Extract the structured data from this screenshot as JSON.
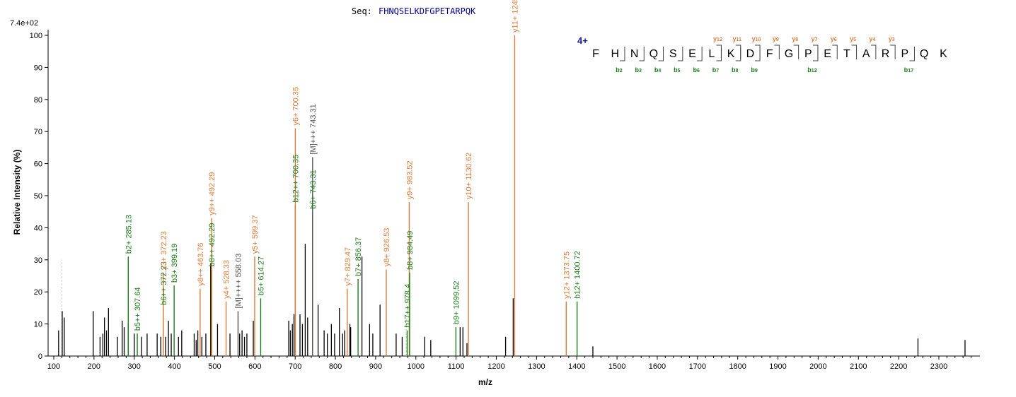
{
  "header": {
    "seq_label": "Seq:",
    "sequence": "FHNQSELKDFGPETARPQK",
    "scale_max": "7.4e+02",
    "charge": "4+"
  },
  "colors": {
    "y_ion": "#e07b39",
    "b_ion": "#1a7f1a",
    "precursor": "#555555",
    "unassigned": "#000000",
    "sequence": "#00008b",
    "charge": "#1a1aa0"
  },
  "chart_data": {
    "type": "bar",
    "title": "",
    "xlabel": "m/z",
    "ylabel": "Relative  Intensity (%)",
    "xlim": [
      100,
      2390
    ],
    "ylim": [
      0,
      100
    ],
    "x_ticks": [
      100,
      200,
      300,
      400,
      500,
      600,
      700,
      800,
      900,
      1000,
      1100,
      1200,
      1300,
      1400,
      1500,
      1600,
      1700,
      1800,
      1900,
      2000,
      2100,
      2200,
      2300
    ],
    "y_ticks": [
      0,
      10,
      20,
      30,
      40,
      50,
      60,
      70,
      80,
      90,
      100
    ],
    "unassigned_peaks": [
      [
        112,
        8
      ],
      [
        121,
        14
      ],
      [
        126,
        12
      ],
      [
        198,
        14
      ],
      [
        215,
        6
      ],
      [
        222,
        7
      ],
      [
        226,
        12
      ],
      [
        231,
        8
      ],
      [
        236,
        15
      ],
      [
        258,
        6
      ],
      [
        270,
        11
      ],
      [
        275,
        9
      ],
      [
        285,
        10
      ],
      [
        300,
        7
      ],
      [
        318,
        6
      ],
      [
        332,
        7
      ],
      [
        357,
        7
      ],
      [
        366,
        6
      ],
      [
        378,
        6
      ],
      [
        385,
        11
      ],
      [
        392,
        7
      ],
      [
        410,
        6
      ],
      [
        418,
        8
      ],
      [
        449,
        7
      ],
      [
        454,
        5
      ],
      [
        458,
        8
      ],
      [
        468,
        6
      ],
      [
        478,
        7
      ],
      [
        490,
        29
      ],
      [
        507,
        10
      ],
      [
        538,
        7
      ],
      [
        562,
        7
      ],
      [
        568,
        8
      ],
      [
        574,
        6
      ],
      [
        580,
        7
      ],
      [
        596,
        11
      ],
      [
        684,
        11
      ],
      [
        688,
        8
      ],
      [
        693,
        10
      ],
      [
        697,
        13
      ],
      [
        712,
        13
      ],
      [
        718,
        10
      ],
      [
        725,
        35
      ],
      [
        731,
        12
      ],
      [
        757,
        16
      ],
      [
        772,
        8
      ],
      [
        780,
        7
      ],
      [
        790,
        10
      ],
      [
        798,
        7
      ],
      [
        810,
        15
      ],
      [
        818,
        7
      ],
      [
        823,
        8
      ],
      [
        836,
        10
      ],
      [
        838,
        9
      ],
      [
        866,
        31
      ],
      [
        885,
        10
      ],
      [
        893,
        7
      ],
      [
        911,
        16
      ],
      [
        951,
        7
      ],
      [
        966,
        6
      ],
      [
        1022,
        6
      ],
      [
        1037,
        5
      ],
      [
        1110,
        9
      ],
      [
        1117,
        9
      ],
      [
        1127,
        4
      ],
      [
        1223,
        6
      ],
      [
        1242,
        18
      ],
      [
        1440,
        3
      ],
      [
        2248,
        5.5
      ],
      [
        2365,
        5
      ]
    ],
    "ion_peaks": [
      {
        "x": 285.13,
        "y": 31,
        "label": "b2+ 285.13",
        "ion": "b"
      },
      {
        "x": 307.64,
        "y": 7,
        "label": "b5++ 307.64",
        "ion": "b"
      },
      {
        "x": 372.23,
        "y": 15,
        "label": "b6++ 372.23",
        "ion": "b"
      },
      {
        "x": 372.23,
        "y": 26,
        "label": "y3+ 372.23",
        "ion": "y"
      },
      {
        "x": 399.19,
        "y": 22,
        "label": "b3+ 399.19",
        "ion": "b"
      },
      {
        "x": 463.76,
        "y": 21,
        "label": "y8++ 463.76",
        "ion": "y"
      },
      {
        "x": 492.29,
        "y": 27,
        "label": "b8++ 492.29",
        "ion": "b"
      },
      {
        "x": 492.29,
        "y": 43,
        "label": "y9++ 492.29",
        "ion": "y"
      },
      {
        "x": 528.33,
        "y": 17,
        "label": "y4+ 528.33",
        "ion": "y"
      },
      {
        "x": 558.03,
        "y": 14,
        "label": "[M]++++ 558.03",
        "ion": "p"
      },
      {
        "x": 599.37,
        "y": 31,
        "label": "y5+ 599.37",
        "ion": "y"
      },
      {
        "x": 614.27,
        "y": 18,
        "label": "b5+ 614.27",
        "ion": "b"
      },
      {
        "x": 700.35,
        "y": 47,
        "label": "b12++ 700.35",
        "ion": "b"
      },
      {
        "x": 700.35,
        "y": 71,
        "label": "y6+ 700.35",
        "ion": "y"
      },
      {
        "x": 743.31,
        "y": 45,
        "label": "b6+ 743.31",
        "ion": "b"
      },
      {
        "x": 743.31,
        "y": 62,
        "label": "[M]+++ 743.31",
        "ion": "p"
      },
      {
        "x": 829.47,
        "y": 21,
        "label": "y7+ 829.47",
        "ion": "y"
      },
      {
        "x": 856.37,
        "y": 24,
        "label": "b7+ 856.37",
        "ion": "b"
      },
      {
        "x": 926.53,
        "y": 27,
        "label": "y8+ 926.53",
        "ion": "y"
      },
      {
        "x": 978.4,
        "y": 8,
        "label": "b17++ 978.4",
        "ion": "b"
      },
      {
        "x": 983.52,
        "y": 48,
        "label": "y9+ 983.52",
        "ion": "y"
      },
      {
        "x": 984.49,
        "y": 26,
        "label": "b8+ 984.49",
        "ion": "b"
      },
      {
        "x": 1099.52,
        "y": 9,
        "label": "b9+ 1099.52",
        "ion": "b"
      },
      {
        "x": 1130.62,
        "y": 48,
        "label": "y10+ 1130.62",
        "ion": "y"
      },
      {
        "x": 1245.64,
        "y": 100,
        "label": "y11+ 1245.64",
        "ion": "y"
      },
      {
        "x": 1373.75,
        "y": 17,
        "label": "y12+ 1373.75",
        "ion": "y"
      },
      {
        "x": 1400.72,
        "y": 17,
        "label": "b12+ 1400.72",
        "ion": "b"
      }
    ],
    "guide_peaks": [
      {
        "x": 120,
        "y": 30
      },
      {
        "x": 976,
        "y": 13
      }
    ]
  },
  "fragment_map": {
    "residues": [
      "F",
      "H",
      "N",
      "Q",
      "S",
      "E",
      "L",
      "K",
      "D",
      "F",
      "G",
      "P",
      "E",
      "T",
      "A",
      "R",
      "P",
      "Q",
      "K"
    ],
    "y_labels": [
      {
        "after": 7,
        "ion": "y",
        "idx": "12"
      },
      {
        "after": 8,
        "ion": "y",
        "idx": "11"
      },
      {
        "after": 9,
        "ion": "y",
        "idx": "10"
      },
      {
        "after": 10,
        "ion": "y",
        "idx": "9"
      },
      {
        "after": 11,
        "ion": "y",
        "idx": "8"
      },
      {
        "after": 12,
        "ion": "y",
        "idx": "7"
      },
      {
        "after": 13,
        "ion": "y",
        "idx": "6"
      },
      {
        "after": 14,
        "ion": "y",
        "idx": "5"
      },
      {
        "after": 15,
        "ion": "y",
        "idx": "4"
      },
      {
        "after": 16,
        "ion": "y",
        "idx": "3"
      }
    ],
    "b_labels": [
      {
        "after": 2,
        "ion": "b",
        "idx": "2"
      },
      {
        "after": 3,
        "ion": "b",
        "idx": "3"
      },
      {
        "after": 4,
        "ion": "b",
        "idx": "4"
      },
      {
        "after": 5,
        "ion": "b",
        "idx": "5"
      },
      {
        "after": 6,
        "ion": "b",
        "idx": "6"
      },
      {
        "after": 7,
        "ion": "b",
        "idx": "7"
      },
      {
        "after": 8,
        "ion": "b",
        "idx": "8"
      },
      {
        "after": 9,
        "ion": "b",
        "idx": "9"
      },
      {
        "after": 12,
        "ion": "b",
        "idx": "12"
      },
      {
        "after": 17,
        "ion": "b",
        "idx": "17"
      }
    ]
  }
}
